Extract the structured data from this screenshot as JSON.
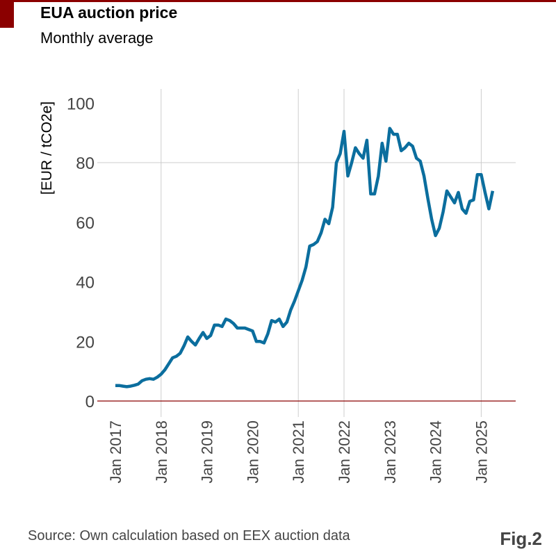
{
  "header": {
    "title": "EUA auction price",
    "subtitle": "Monthly average"
  },
  "footer": {
    "source": "Source: Own calculation based on EEX auction data",
    "figure_label": "Fig.2"
  },
  "colors": {
    "line": "#0b6e9e",
    "accent": "#8b0000",
    "grid": "#cccccc"
  },
  "chart_data": {
    "type": "line",
    "title": "EUA auction price",
    "subtitle": "Monthly average",
    "xlabel": "",
    "ylabel": "[EUR / tCO2e]",
    "ylim": [
      0,
      100
    ],
    "yticks": [
      0,
      20,
      40,
      60,
      80,
      100
    ],
    "xtick_labels": [
      "Jan 2017",
      "Jan 2018",
      "Jan 2019",
      "Jan 2020",
      "Jan 2021",
      "Jan 2022",
      "Jan 2023",
      "Jan 2024",
      "Jan 2025"
    ],
    "x_start": "Jan 2017",
    "x_end": "Apr 2025",
    "grid": "partial: horizontal at 80; vertical at Jan 2018, Jan 2021, Jan 2022, Jan 2025",
    "legend": "none",
    "series": [
      {
        "name": "EUA auction price (monthly average)",
        "values": [
          5.2,
          5.2,
          5.0,
          4.8,
          5.0,
          5.3,
          5.7,
          6.8,
          7.3,
          7.5,
          7.3,
          8.0,
          9.0,
          10.5,
          12.5,
          14.5,
          15.0,
          16.0,
          18.5,
          21.5,
          20.0,
          18.8,
          21.0,
          23.0,
          21.0,
          22.0,
          25.5,
          25.5,
          25.0,
          27.5,
          27.0,
          26.0,
          24.5,
          24.5,
          24.5,
          24.0,
          23.5,
          20.0,
          20.0,
          19.5,
          22.5,
          27.0,
          26.5,
          27.5,
          25.0,
          26.5,
          30.5,
          33.5,
          37.0,
          40.5,
          45.0,
          52.0,
          52.5,
          53.5,
          56.5,
          61.0,
          59.5,
          65.0,
          80.0,
          83.0,
          90.5,
          75.5,
          80.0,
          85.0,
          83.0,
          81.5,
          87.5,
          69.5,
          69.5,
          75.5,
          86.5,
          80.5,
          91.5,
          89.5,
          89.5,
          84.0,
          85.0,
          86.5,
          85.5,
          81.5,
          80.5,
          75.5,
          68.0,
          61.0,
          55.5,
          58.0,
          63.5,
          70.5,
          68.5,
          66.5,
          70.0,
          64.5,
          63.0,
          67.0,
          67.5,
          76.0,
          76.0,
          70.0,
          64.5,
          70.5
        ]
      }
    ]
  }
}
